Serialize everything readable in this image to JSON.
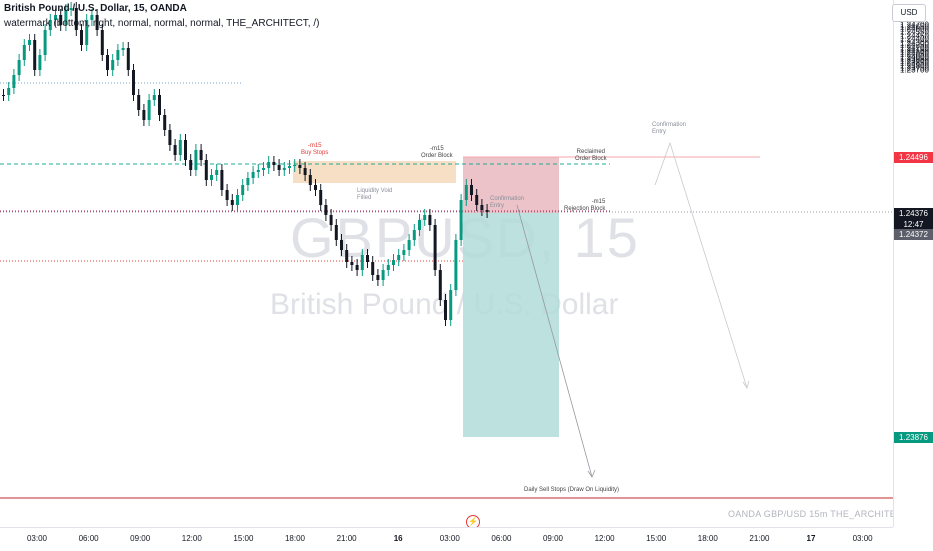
{
  "legend": {
    "title": "British Pound / U.S. Dollar, 15, OANDA",
    "indicator": "watermark (bottom, right, normal, normal, normal, THE_ARCHITECT, /)"
  },
  "watermark": {
    "symbol": "GBPUSD, 15",
    "description": "British Pound / U.S. Dollar"
  },
  "footer_watermark": "OANDA  GBP/USD 15m  THE_ARCHITECT",
  "currency": "USD",
  "bolt_icon": "lightning-icon",
  "price_axis": {
    "ticks": [
      "1.24700",
      "1.24650",
      "1.24600",
      "1.24550",
      "1.24450",
      "1.24400",
      "1.24300",
      "1.24250",
      "1.24200",
      "1.24150",
      "1.24100",
      "1.24050",
      "1.24000",
      "1.23950",
      "1.23900",
      "1.23850",
      "1.23800",
      "1.23750",
      "1.23700"
    ],
    "labels": {
      "reclaimed": "1.24496",
      "last_price": "1.24376",
      "countdown": "12:47",
      "rejection": "1.24372",
      "target": "1.23876"
    }
  },
  "time_axis": [
    "03:00",
    "06:00",
    "09:00",
    "12:00",
    "15:00",
    "18:00",
    "21:00",
    "16",
    "03:00",
    "06:00",
    "09:00",
    "12:00",
    "15:00",
    "18:00",
    "21:00",
    "17",
    "03:00"
  ],
  "annotations": {
    "buy_stops_tf": "-m15",
    "buy_stops": "Buy Stops",
    "order_block_tf": "-m15",
    "order_block": "Order Block",
    "liquidity_void_1": "Liquidity Void",
    "liquidity_void_2": "Filled",
    "confirmation_1": "Confirmation",
    "confirmation_2": "Entry",
    "confirmation_top_1": "Confirmation",
    "confirmation_top_2": "Entry",
    "reclaimed_1": "Reclaimed",
    "reclaimed_2": "Order Block",
    "rejection_tf": "-m15",
    "rejection": "Rejection Block",
    "daily_sell_stops": "Daily Sell Stops (Draw On Liquidity)"
  },
  "colors": {
    "bull": "#089981",
    "bear": "#131722",
    "order_block_fill": "#f5dcbf",
    "stop_zone": "#e8b8c0",
    "target_zone": "#b2dcd8",
    "reclaimed_label": "#f23645",
    "last_price_label": "#131722",
    "rejection_label": "#5d606b",
    "target_label": "#089981"
  }
}
